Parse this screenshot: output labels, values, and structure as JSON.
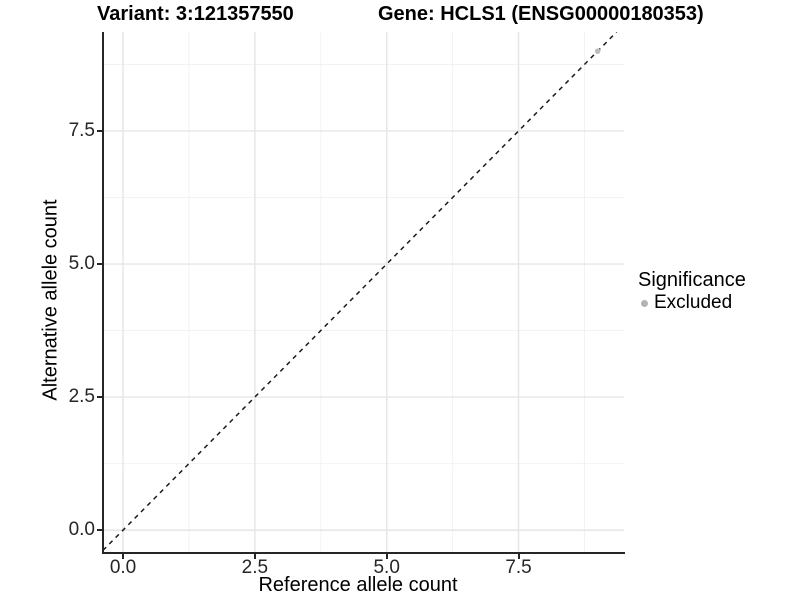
{
  "titles": {
    "variant": "Variant: 3:121357550",
    "gene": "Gene: HCLS1 (ENSG00000180353)"
  },
  "axes": {
    "x_label": "Reference allele count",
    "y_label": "Alternative allele count"
  },
  "legend": {
    "title": "Significance",
    "items": [
      {
        "label": "Excluded",
        "color": "#b3b3b3"
      }
    ]
  },
  "colors": {
    "background": "#ffffff",
    "axis_line": "#262626",
    "major_grid": "#e5e5e5",
    "minor_grid": "#f2f2f2",
    "reference_line": "#1a1a1a",
    "excluded_point": "#bdbdbd",
    "text": "#000000"
  },
  "chart_data": {
    "type": "scatter",
    "title": "Variant: 3:121357550 | Gene: HCLS1 (ENSG00000180353)",
    "xlabel": "Reference allele count",
    "ylabel": "Alternative allele count",
    "xlim": [
      -0.38,
      9.5
    ],
    "ylim": [
      -0.43,
      9.36
    ],
    "x_ticks": [
      0,
      2.5,
      5,
      7.5
    ],
    "x_tick_labels": [
      "0.0",
      "2.5",
      "5.0",
      "7.5"
    ],
    "y_ticks": [
      0,
      2.5,
      5,
      7.5
    ],
    "y_tick_labels": [
      "0.0",
      "2.5",
      "5.0",
      "7.5"
    ],
    "minor_x_ticks": [
      1.25,
      3.75,
      6.25,
      8.75
    ],
    "minor_y_ticks": [
      1.25,
      3.75,
      6.25,
      8.75
    ],
    "grid": true,
    "legend_position": "right",
    "series": [
      {
        "name": "Excluded",
        "color": "#bdbdbd",
        "point_radius": 2.8,
        "points": [
          [
            9,
            9
          ]
        ]
      }
    ],
    "reference_line": {
      "type": "identity",
      "style": "dashed",
      "color": "#1a1a1a",
      "x1": -0.38,
      "y1": -0.38,
      "x2": 9.36,
      "y2": 9.36
    }
  }
}
